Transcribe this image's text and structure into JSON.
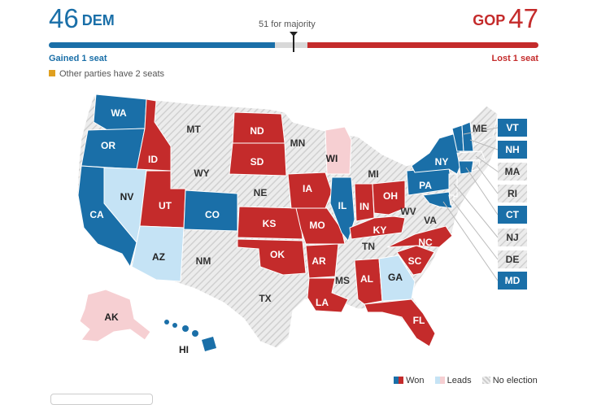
{
  "header": {
    "dem_count": "46",
    "dem_label": "DEM",
    "gop_label": "GOP",
    "gop_count": "47",
    "majority_label": "51 for majority",
    "dem_change": "Gained 1 seat",
    "gop_change": "Lost 1 seat",
    "other_parties": "Other parties have 2 seats"
  },
  "colors": {
    "dem": "#1a6fa8",
    "gop": "#c42b2b",
    "dem_lead": "#c5e3f5",
    "gop_lead": "#f6cfd2",
    "no_election": "#dddddd",
    "other": "#e0a020"
  },
  "states": {
    "WA": {
      "label": "WA",
      "status": "dem-won"
    },
    "OR": {
      "label": "OR",
      "status": "dem-won"
    },
    "CA": {
      "label": "CA",
      "status": "dem-won"
    },
    "NV": {
      "label": "NV",
      "status": "dem-leads"
    },
    "AZ": {
      "label": "AZ",
      "status": "dem-leads"
    },
    "ID": {
      "label": "ID",
      "status": "gop-won"
    },
    "UT": {
      "label": "UT",
      "status": "gop-won"
    },
    "CO": {
      "label": "CO",
      "status": "dem-won"
    },
    "MT": {
      "label": "MT",
      "status": "no-election"
    },
    "WY": {
      "label": "WY",
      "status": "no-election"
    },
    "NM": {
      "label": "NM",
      "status": "no-election"
    },
    "ND": {
      "label": "ND",
      "status": "gop-won"
    },
    "SD": {
      "label": "SD",
      "status": "gop-won"
    },
    "NE": {
      "label": "NE",
      "status": "no-election"
    },
    "KS": {
      "label": "KS",
      "status": "gop-won"
    },
    "OK": {
      "label": "OK",
      "status": "gop-won"
    },
    "TX": {
      "label": "TX",
      "status": "no-election"
    },
    "MN": {
      "label": "MN",
      "status": "no-election"
    },
    "IA": {
      "label": "IA",
      "status": "gop-won"
    },
    "MO": {
      "label": "MO",
      "status": "gop-won"
    },
    "AR": {
      "label": "AR",
      "status": "gop-won"
    },
    "LA": {
      "label": "LA",
      "status": "gop-won"
    },
    "WI": {
      "label": "WI",
      "status": "gop-leads"
    },
    "IL": {
      "label": "IL",
      "status": "dem-won"
    },
    "MI": {
      "label": "MI",
      "status": "no-election"
    },
    "IN": {
      "label": "IN",
      "status": "gop-won"
    },
    "OH": {
      "label": "OH",
      "status": "gop-won"
    },
    "KY": {
      "label": "KY",
      "status": "gop-won"
    },
    "TN": {
      "label": "TN",
      "status": "no-election"
    },
    "MS": {
      "label": "MS",
      "status": "no-election"
    },
    "AL": {
      "label": "AL",
      "status": "gop-won"
    },
    "GA": {
      "label": "GA",
      "status": "dem-leads"
    },
    "FL": {
      "label": "FL",
      "status": "gop-won"
    },
    "SC": {
      "label": "SC",
      "status": "gop-won"
    },
    "NC": {
      "label": "NC",
      "status": "gop-won"
    },
    "VA": {
      "label": "VA",
      "status": "no-election"
    },
    "WV": {
      "label": "WV",
      "status": "no-election"
    },
    "PA": {
      "label": "PA",
      "status": "dem-won"
    },
    "NY": {
      "label": "NY",
      "status": "dem-won"
    },
    "ME": {
      "label": "ME",
      "status": "no-election"
    },
    "VT": {
      "label": "VT",
      "status": "dem-won"
    },
    "NH": {
      "label": "NH",
      "status": "dem-won"
    },
    "MA": {
      "label": "MA",
      "status": "no-election"
    },
    "RI": {
      "label": "RI",
      "status": "no-election"
    },
    "CT": {
      "label": "CT",
      "status": "dem-won"
    },
    "NJ": {
      "label": "NJ",
      "status": "no-election"
    },
    "DE": {
      "label": "DE",
      "status": "no-election"
    },
    "MD": {
      "label": "MD",
      "status": "dem-won"
    },
    "AK": {
      "label": "AK",
      "status": "gop-leads"
    },
    "HI": {
      "label": "HI",
      "status": "dem-won"
    }
  },
  "legend": {
    "won": "Won",
    "leads": "Leads",
    "no_election": "No election"
  }
}
